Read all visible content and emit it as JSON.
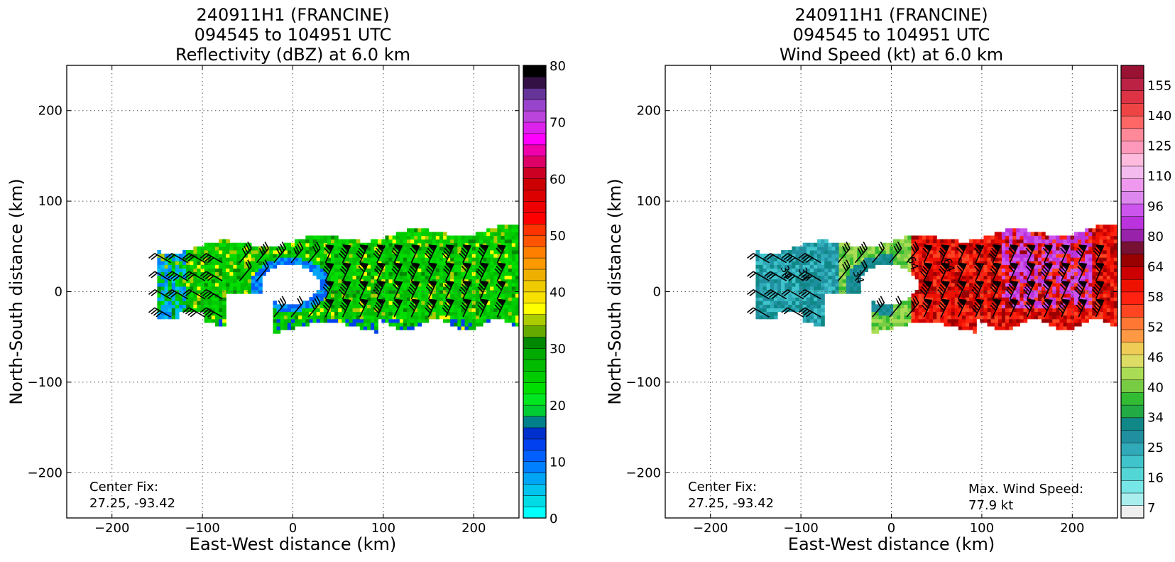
{
  "chart_data": [
    {
      "type": "heatmap",
      "title_lines": [
        "240911H1 (FRANCINE)",
        "094545 to 104951 UTC",
        "Reflectivity (dBZ) at 6.0 km"
      ],
      "xlabel": "East-West distance (km)",
      "ylabel": "North-South distance (km)",
      "xlim": [
        -250,
        250
      ],
      "ylim": [
        -250,
        250
      ],
      "xticks": [
        -200,
        -100,
        0,
        100,
        200
      ],
      "yticks": [
        -200,
        -100,
        0,
        100,
        200
      ],
      "grid": true,
      "annotation_left": [
        "Center Fix:",
        "27.25, -93.42"
      ],
      "annotation_right": [],
      "colorbar": {
        "min": 0,
        "max": 80,
        "tick_values": [
          0,
          10,
          20,
          30,
          40,
          50,
          60,
          70,
          80
        ],
        "tick_labels": [
          "0",
          "10",
          "20",
          "30",
          "40",
          "50",
          "60",
          "70",
          "80"
        ],
        "colors": [
          "#00ffff",
          "#00dbe6",
          "#00c4ee",
          "#00a5f5",
          "#0080ff",
          "#0060ff",
          "#0040ee",
          "#0030cc",
          "#00808a",
          "#00cc33",
          "#00e620",
          "#00dd00",
          "#00cc00",
          "#00bb00",
          "#00aa00",
          "#008800",
          "#66aa00",
          "#aacc00",
          "#ffff00",
          "#f8e000",
          "#eecc00",
          "#eeb000",
          "#ff9900",
          "#ff8000",
          "#ff5500",
          "#ff3300",
          "#ff0000",
          "#ee0000",
          "#dd0000",
          "#cc0000",
          "#cc0022",
          "#dd0066",
          "#ee00aa",
          "#ff00ff",
          "#dd22ee",
          "#bb44dd",
          "#9944cc",
          "#663399",
          "#331144",
          "#000000"
        ]
      }
    },
    {
      "type": "heatmap",
      "title_lines": [
        "240911H1 (FRANCINE)",
        "094545 to 104951 UTC",
        "Wind Speed (kt) at 6.0 km"
      ],
      "xlabel": "East-West distance (km)",
      "ylabel": "North-South distance (km)",
      "xlim": [
        -250,
        250
      ],
      "ylim": [
        -250,
        250
      ],
      "xticks": [
        -200,
        -100,
        0,
        100,
        200
      ],
      "yticks": [
        -200,
        -100,
        0,
        100,
        200
      ],
      "grid": true,
      "annotation_left": [
        "Center Fix:",
        "27.25, -93.42"
      ],
      "annotation_right": [
        "Max. Wind Speed:",
        "77.9 kt"
      ],
      "contour_labels": [
        "34",
        "34",
        "34",
        "64",
        "64"
      ],
      "colorbar": {
        "tick_labels": [
          "7",
          "16",
          "25",
          "34",
          "40",
          "46",
          "52",
          "58",
          "64",
          "80",
          "96",
          "110",
          "125",
          "140",
          "155"
        ],
        "colors": [
          "#eeeeee",
          "#aaeeee",
          "#77e6e6",
          "#55d6d6",
          "#40c4cc",
          "#30aab8",
          "#2090a0",
          "#108888",
          "#22aa44",
          "#33bb33",
          "#77cc44",
          "#aadd55",
          "#dddd66",
          "#eecc55",
          "#ff9944",
          "#ff7733",
          "#ff4422",
          "#ff2211",
          "#ee1100",
          "#cc0000",
          "#990000",
          "#771133",
          "#9922aa",
          "#bb33dd",
          "#cc55ee",
          "#dd88ee",
          "#ee99ee",
          "#f4bbee",
          "#ffbbdd",
          "#ff99bb",
          "#ff8899",
          "#ff6666",
          "#ee4444",
          "#dd3344",
          "#bb2244",
          "#991133"
        ]
      }
    }
  ]
}
